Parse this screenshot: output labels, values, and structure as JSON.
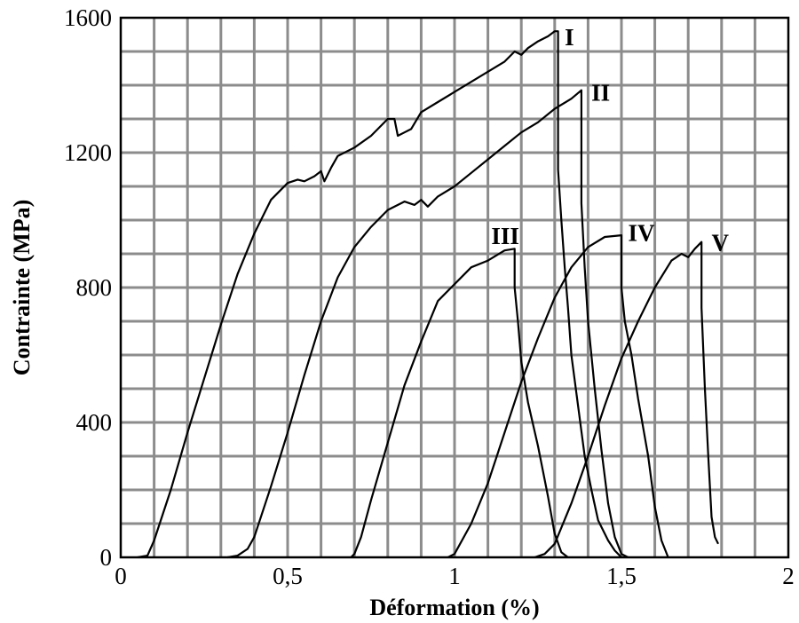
{
  "chart_data": {
    "type": "line",
    "title": "",
    "xlabel": "Déformation (%)",
    "ylabel": "Contrainte (MPa)",
    "xlim": [
      0,
      2
    ],
    "ylim": [
      0,
      1600
    ],
    "grid": true,
    "grid_step_x": 0.1,
    "grid_step_y": 100,
    "x_ticks": [
      {
        "value": 0,
        "label": "0"
      },
      {
        "value": 0.5,
        "label": "0,5"
      },
      {
        "value": 1,
        "label": "1"
      },
      {
        "value": 1.5,
        "label": "1,5"
      },
      {
        "value": 2,
        "label": "2"
      }
    ],
    "y_ticks": [
      {
        "value": 0,
        "label": "0"
      },
      {
        "value": 400,
        "label": "400"
      },
      {
        "value": 800,
        "label": "800"
      },
      {
        "value": 1200,
        "label": "1200"
      },
      {
        "value": 1600,
        "label": "1600"
      }
    ],
    "series": [
      {
        "label": "I",
        "label_at": [
          1.33,
          1545
        ],
        "points": [
          [
            0.05,
            0
          ],
          [
            0.08,
            5
          ],
          [
            0.1,
            50
          ],
          [
            0.15,
            200
          ],
          [
            0.2,
            370
          ],
          [
            0.25,
            530
          ],
          [
            0.3,
            690
          ],
          [
            0.35,
            840
          ],
          [
            0.4,
            960
          ],
          [
            0.45,
            1060
          ],
          [
            0.5,
            1110
          ],
          [
            0.53,
            1120
          ],
          [
            0.55,
            1115
          ],
          [
            0.58,
            1130
          ],
          [
            0.6,
            1145
          ],
          [
            0.61,
            1115
          ],
          [
            0.63,
            1155
          ],
          [
            0.65,
            1190
          ],
          [
            0.7,
            1215
          ],
          [
            0.75,
            1250
          ],
          [
            0.8,
            1300
          ],
          [
            0.82,
            1300
          ],
          [
            0.83,
            1250
          ],
          [
            0.85,
            1260
          ],
          [
            0.87,
            1270
          ],
          [
            0.9,
            1320
          ],
          [
            0.95,
            1350
          ],
          [
            1.0,
            1380
          ],
          [
            1.05,
            1410
          ],
          [
            1.1,
            1440
          ],
          [
            1.15,
            1470
          ],
          [
            1.18,
            1500
          ],
          [
            1.2,
            1490
          ],
          [
            1.22,
            1510
          ],
          [
            1.25,
            1530
          ],
          [
            1.28,
            1545
          ],
          [
            1.3,
            1560
          ],
          [
            1.31,
            1560
          ],
          [
            1.31,
            1150
          ],
          [
            1.32,
            1000
          ],
          [
            1.33,
            860
          ],
          [
            1.34,
            740
          ],
          [
            1.35,
            600
          ],
          [
            1.37,
            450
          ],
          [
            1.39,
            300
          ],
          [
            1.41,
            200
          ],
          [
            1.43,
            110
          ],
          [
            1.46,
            50
          ],
          [
            1.48,
            20
          ],
          [
            1.5,
            0
          ]
        ]
      },
      {
        "label": "II",
        "label_at": [
          1.41,
          1380
        ],
        "points": [
          [
            0.32,
            0
          ],
          [
            0.35,
            5
          ],
          [
            0.38,
            25
          ],
          [
            0.4,
            60
          ],
          [
            0.45,
            210
          ],
          [
            0.5,
            370
          ],
          [
            0.55,
            540
          ],
          [
            0.6,
            700
          ],
          [
            0.65,
            830
          ],
          [
            0.7,
            920
          ],
          [
            0.75,
            980
          ],
          [
            0.8,
            1030
          ],
          [
            0.85,
            1055
          ],
          [
            0.88,
            1045
          ],
          [
            0.9,
            1060
          ],
          [
            0.92,
            1040
          ],
          [
            0.95,
            1070
          ],
          [
            1.0,
            1100
          ],
          [
            1.05,
            1140
          ],
          [
            1.1,
            1180
          ],
          [
            1.15,
            1220
          ],
          [
            1.2,
            1260
          ],
          [
            1.25,
            1290
          ],
          [
            1.3,
            1330
          ],
          [
            1.35,
            1360
          ],
          [
            1.38,
            1385
          ],
          [
            1.38,
            1050
          ],
          [
            1.39,
            860
          ],
          [
            1.4,
            700
          ],
          [
            1.42,
            500
          ],
          [
            1.44,
            320
          ],
          [
            1.46,
            160
          ],
          [
            1.48,
            60
          ],
          [
            1.5,
            10
          ],
          [
            1.52,
            0
          ]
        ]
      },
      {
        "label": "III",
        "label_at": [
          1.11,
          955
        ],
        "points": [
          [
            0.69,
            0
          ],
          [
            0.7,
            10
          ],
          [
            0.72,
            60
          ],
          [
            0.75,
            170
          ],
          [
            0.8,
            340
          ],
          [
            0.85,
            510
          ],
          [
            0.9,
            640
          ],
          [
            0.95,
            760
          ],
          [
            1.0,
            810
          ],
          [
            1.05,
            860
          ],
          [
            1.1,
            880
          ],
          [
            1.15,
            910
          ],
          [
            1.18,
            915
          ],
          [
            1.18,
            800
          ],
          [
            1.19,
            700
          ],
          [
            1.2,
            580
          ],
          [
            1.22,
            460
          ],
          [
            1.25,
            330
          ],
          [
            1.28,
            180
          ],
          [
            1.3,
            70
          ],
          [
            1.32,
            15
          ],
          [
            1.34,
            0
          ]
        ]
      },
      {
        "label": "IV",
        "label_at": [
          1.52,
          965
        ],
        "points": [
          [
            0.98,
            0
          ],
          [
            1.0,
            10
          ],
          [
            1.05,
            100
          ],
          [
            1.1,
            220
          ],
          [
            1.15,
            370
          ],
          [
            1.2,
            520
          ],
          [
            1.25,
            650
          ],
          [
            1.3,
            770
          ],
          [
            1.35,
            860
          ],
          [
            1.4,
            920
          ],
          [
            1.45,
            950
          ],
          [
            1.5,
            955
          ],
          [
            1.5,
            800
          ],
          [
            1.51,
            700
          ],
          [
            1.53,
            600
          ],
          [
            1.55,
            470
          ],
          [
            1.58,
            300
          ],
          [
            1.6,
            150
          ],
          [
            1.62,
            50
          ],
          [
            1.64,
            0
          ]
        ]
      },
      {
        "label": "V",
        "label_at": [
          1.77,
          935
        ],
        "points": [
          [
            1.24,
            0
          ],
          [
            1.27,
            10
          ],
          [
            1.3,
            40
          ],
          [
            1.35,
            160
          ],
          [
            1.4,
            300
          ],
          [
            1.45,
            450
          ],
          [
            1.5,
            590
          ],
          [
            1.55,
            700
          ],
          [
            1.6,
            800
          ],
          [
            1.65,
            880
          ],
          [
            1.68,
            900
          ],
          [
            1.7,
            890
          ],
          [
            1.72,
            915
          ],
          [
            1.74,
            935
          ],
          [
            1.74,
            740
          ],
          [
            1.75,
            500
          ],
          [
            1.76,
            300
          ],
          [
            1.77,
            120
          ],
          [
            1.78,
            60
          ],
          [
            1.79,
            40
          ]
        ]
      }
    ]
  }
}
